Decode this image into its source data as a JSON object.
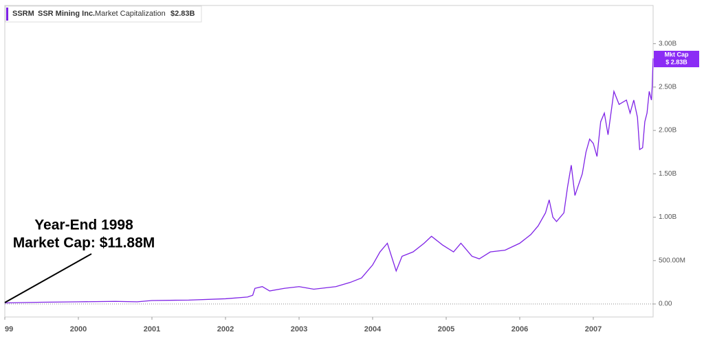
{
  "chart_data": {
    "type": "line",
    "ticker": "SSRM",
    "company": "SSR Mining Inc.",
    "metric": "Market Capitalization",
    "last_value_label": "$2.83B",
    "badge_title": "Mkt Cap",
    "badge_value": "$ 2.83B",
    "annotation": [
      "Year-End 1998",
      "Market Cap: $11.88M"
    ],
    "xlim": [
      1999.0,
      2007.813
    ],
    "xticks": [
      {
        "value": 1999,
        "label": "99"
      },
      2000,
      2001,
      2002,
      2003,
      2004,
      2005,
      2006,
      2007
    ],
    "ylim": [
      -0.15,
      3.44
    ],
    "yticks": [
      {
        "value": 0,
        "label": "0.00"
      },
      {
        "value": 0.5,
        "label": "500.00M"
      },
      {
        "value": 1,
        "label": "1.00B"
      },
      {
        "value": 1.5,
        "label": "1.50B"
      },
      {
        "value": 2,
        "label": "2.00B"
      },
      {
        "value": 2.5,
        "label": "2.50B"
      },
      {
        "value": 3,
        "label": "3.00B"
      }
    ],
    "series": [
      {
        "name": "SSRM",
        "color": "#7e22e6",
        "x": [
          1999.0,
          1999.5,
          2000.0,
          2000.5,
          2000.8,
          2001.0,
          2001.5,
          2002.0,
          2002.3,
          2002.37,
          2002.4,
          2002.5,
          2002.6,
          2002.8,
          2003.0,
          2003.2,
          2003.5,
          2003.7,
          2003.85,
          2004.0,
          2004.1,
          2004.2,
          2004.32,
          2004.4,
          2004.55,
          2004.7,
          2004.8,
          2004.95,
          2005.1,
          2005.2,
          2005.35,
          2005.45,
          2005.6,
          2005.8,
          2006.0,
          2006.15,
          2006.25,
          2006.35,
          2006.4,
          2006.45,
          2006.5,
          2006.6,
          2006.65,
          2006.7,
          2006.75,
          2006.85,
          2006.9,
          2006.95,
          2007.0,
          2007.05,
          2007.1,
          2007.15,
          2007.2,
          2007.28,
          2007.35,
          2007.45,
          2007.5,
          2007.55,
          2007.6,
          2007.63,
          2007.67,
          2007.7,
          2007.73,
          2007.76,
          2007.79,
          2007.8,
          2007.813
        ],
        "values": [
          0.012,
          0.02,
          0.025,
          0.03,
          0.025,
          0.04,
          0.045,
          0.06,
          0.08,
          0.1,
          0.18,
          0.2,
          0.15,
          0.18,
          0.2,
          0.17,
          0.2,
          0.25,
          0.3,
          0.45,
          0.6,
          0.7,
          0.38,
          0.55,
          0.6,
          0.7,
          0.78,
          0.68,
          0.6,
          0.7,
          0.55,
          0.52,
          0.6,
          0.62,
          0.7,
          0.8,
          0.9,
          1.05,
          1.2,
          1.0,
          0.95,
          1.05,
          1.35,
          1.6,
          1.25,
          1.5,
          1.75,
          1.9,
          1.85,
          1.7,
          2.1,
          2.2,
          1.95,
          2.45,
          2.3,
          2.35,
          2.2,
          2.35,
          2.15,
          1.78,
          1.8,
          2.1,
          2.2,
          2.45,
          2.35,
          2.5,
          2.83
        ]
      }
    ]
  }
}
